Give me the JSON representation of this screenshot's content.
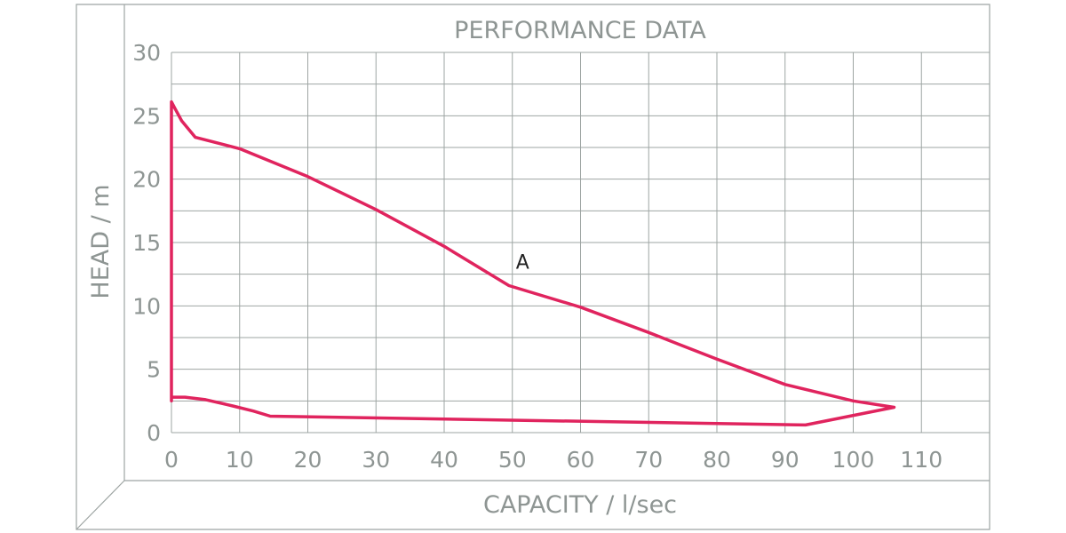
{
  "chart_data": {
    "type": "line",
    "title": "PERFORMANCE DATA",
    "xlabel": "CAPACITY / l/sec",
    "ylabel": "HEAD / m",
    "xlim": [
      0,
      120
    ],
    "ylim": [
      0,
      30
    ],
    "xticks": [
      0,
      10,
      20,
      30,
      40,
      50,
      60,
      70,
      80,
      90,
      100,
      110
    ],
    "yticks": [
      0,
      5,
      10,
      15,
      20,
      25,
      30
    ],
    "grid": true,
    "line_color": "#e0245e",
    "series": [
      {
        "name": "",
        "closed": true,
        "points": [
          [
            0,
            2.5
          ],
          [
            0,
            26.1
          ],
          [
            0.5,
            25.6
          ],
          [
            1.5,
            24.6
          ],
          [
            3.5,
            23.3
          ],
          [
            10,
            22.4
          ],
          [
            20,
            20.2
          ],
          [
            30,
            17.6
          ],
          [
            40,
            14.7
          ],
          [
            49.5,
            11.6
          ],
          [
            60,
            9.9
          ],
          [
            70,
            7.9
          ],
          [
            80,
            5.8
          ],
          [
            90,
            3.8
          ],
          [
            100,
            2.5
          ],
          [
            106,
            2.0
          ],
          [
            93,
            0.6
          ],
          [
            14.5,
            1.3
          ],
          [
            12,
            1.7
          ],
          [
            9,
            2.1
          ],
          [
            5,
            2.6
          ],
          [
            2,
            2.8
          ],
          [
            0,
            2.8
          ]
        ]
      }
    ],
    "annotations": [
      {
        "text": "A",
        "x": 51.5,
        "y": 13.5
      }
    ]
  }
}
